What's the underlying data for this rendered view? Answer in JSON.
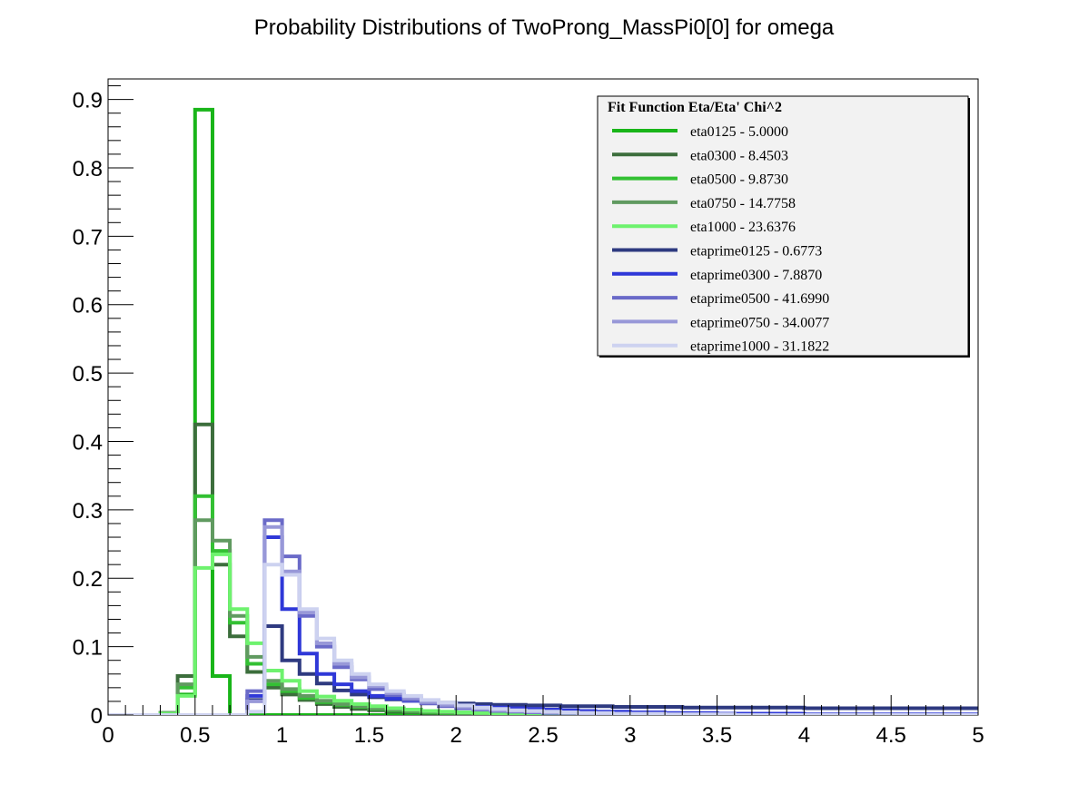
{
  "chart_data": {
    "type": "line",
    "title": "Probability Distributions of TwoProng_MassPi0[0] for omega",
    "xlim": [
      0,
      5
    ],
    "ylim": [
      0,
      0.93
    ],
    "x_ticks": [
      "0",
      "0.5",
      "1",
      "1.5",
      "2",
      "2.5",
      "3",
      "3.5",
      "4",
      "4.5",
      "5"
    ],
    "y_ticks": [
      "0",
      "0.1",
      "0.2",
      "0.3",
      "0.4",
      "0.5",
      "0.6",
      "0.7",
      "0.8",
      "0.9"
    ],
    "grid": false,
    "legend_position": "top-right",
    "legend_title": "Fit Function Eta/Eta' Chi^2",
    "bin_width": 0.1,
    "x_bin_edges_start": 0,
    "num_bins": 50,
    "series": [
      {
        "name": "eta0125",
        "chi2": "5.0000",
        "label": "eta0125 - 5.0000",
        "color": "#19b519",
        "values": [
          0,
          0,
          0,
          0.003,
          0.03,
          0.885,
          0.057,
          0,
          0,
          0,
          0,
          0,
          0,
          0,
          0,
          0,
          0,
          0,
          0,
          0,
          0,
          0,
          0,
          0,
          0,
          0,
          0,
          0,
          0,
          0,
          0,
          0,
          0,
          0,
          0,
          0,
          0,
          0,
          0,
          0,
          0,
          0,
          0,
          0,
          0,
          0,
          0,
          0,
          0,
          0
        ]
      },
      {
        "name": "eta0300",
        "chi2": "8.4503",
        "label": "eta0300 - 8.4503",
        "color": "#3c6e3c",
        "values": [
          0,
          0,
          0,
          0.003,
          0.057,
          0.425,
          0.22,
          0.115,
          0.063,
          0.04,
          0.03,
          0.022,
          0.016,
          0.012,
          0.009,
          0.007,
          0.005,
          0.004,
          0.003,
          0.002,
          0.002,
          0.0015,
          0.001,
          0.001,
          0.001,
          0,
          0,
          0,
          0,
          0,
          0,
          0,
          0,
          0,
          0,
          0,
          0,
          0,
          0,
          0,
          0,
          0,
          0,
          0,
          0,
          0,
          0,
          0,
          0,
          0
        ]
      },
      {
        "name": "eta0500",
        "chi2": "9.8730",
        "label": "eta0500 - 9.8730",
        "color": "#33c033",
        "values": [
          0,
          0,
          0,
          0.002,
          0.04,
          0.32,
          0.24,
          0.135,
          0.075,
          0.045,
          0.035,
          0.025,
          0.019,
          0.015,
          0.012,
          0.009,
          0.007,
          0.005,
          0.004,
          0.003,
          0.002,
          0.002,
          0.001,
          0.001,
          0.001,
          0,
          0,
          0,
          0,
          0,
          0,
          0,
          0,
          0,
          0,
          0,
          0,
          0,
          0,
          0,
          0,
          0,
          0,
          0,
          0,
          0,
          0,
          0,
          0,
          0
        ]
      },
      {
        "name": "eta0750",
        "chi2": "14.7758",
        "label": "eta0750 - 14.7758",
        "color": "#609a60",
        "values": [
          0,
          0,
          0,
          0.003,
          0.045,
          0.285,
          0.255,
          0.145,
          0.085,
          0.05,
          0.038,
          0.028,
          0.021,
          0.016,
          0.013,
          0.01,
          0.008,
          0.006,
          0.005,
          0.004,
          0.003,
          0.002,
          0.002,
          0.001,
          0.001,
          0,
          0,
          0,
          0,
          0,
          0,
          0,
          0,
          0,
          0,
          0,
          0,
          0,
          0,
          0,
          0,
          0,
          0,
          0,
          0,
          0,
          0,
          0,
          0,
          0
        ]
      },
      {
        "name": "eta1000",
        "chi2": "23.6376",
        "label": "eta1000 - 23.6376",
        "color": "#6ef26e",
        "values": [
          0,
          0,
          0,
          0.002,
          0.028,
          0.215,
          0.235,
          0.155,
          0.105,
          0.065,
          0.05,
          0.035,
          0.027,
          0.021,
          0.016,
          0.013,
          0.01,
          0.008,
          0.006,
          0.005,
          0.004,
          0.003,
          0.002,
          0.002,
          0.001,
          0.001,
          0,
          0,
          0,
          0,
          0,
          0,
          0,
          0,
          0,
          0,
          0,
          0,
          0,
          0,
          0,
          0,
          0,
          0,
          0,
          0,
          0,
          0,
          0,
          0
        ]
      },
      {
        "name": "etaprime0125",
        "chi2": "0.6773",
        "label": "etaprime0125 - 0.6773",
        "color": "#2e3a80",
        "values": [
          0,
          0,
          0,
          0,
          0,
          0,
          0,
          0,
          0.022,
          0.13,
          0.08,
          0.06,
          0.046,
          0.036,
          0.03,
          0.026,
          0.023,
          0.021,
          0.019,
          0.018,
          0.017,
          0.016,
          0.015,
          0.015,
          0.014,
          0.014,
          0.013,
          0.013,
          0.013,
          0.012,
          0.012,
          0.012,
          0.012,
          0.011,
          0.011,
          0.011,
          0.011,
          0.011,
          0.011,
          0.011,
          0.01,
          0.01,
          0.01,
          0.01,
          0.01,
          0.01,
          0.01,
          0.01,
          0.01,
          0.01
        ]
      },
      {
        "name": "etaprime0300",
        "chi2": "7.8870",
        "label": "etaprime0300 - 7.8870",
        "color": "#2f38d8",
        "values": [
          0,
          0,
          0,
          0,
          0,
          0,
          0,
          0,
          0.028,
          0.26,
          0.155,
          0.09,
          0.06,
          0.045,
          0.035,
          0.028,
          0.024,
          0.021,
          0.018,
          0.016,
          0.014,
          0.012,
          0.011,
          0.01,
          0.009,
          0.008,
          0.007,
          0.006,
          0.005,
          0.005,
          0.004,
          0.004,
          0.003,
          0.003,
          0.003,
          0.002,
          0.002,
          0.002,
          0.002,
          0.002,
          0.001,
          0.001,
          0.001,
          0.001,
          0.001,
          0.001,
          0.001,
          0.001,
          0.001,
          0.001
        ]
      },
      {
        "name": "etaprime0500",
        "chi2": "41.6990",
        "label": "etaprime0500 - 41.6990",
        "color": "#6a6ac8",
        "values": [
          0,
          0,
          0,
          0,
          0,
          0,
          0,
          0,
          0.035,
          0.285,
          0.232,
          0.145,
          0.1,
          0.07,
          0.052,
          0.038,
          0.029,
          0.022,
          0.017,
          0.013,
          0.01,
          0.008,
          0.006,
          0.005,
          0.004,
          0.003,
          0.003,
          0.002,
          0.002,
          0.002,
          0.001,
          0.001,
          0.001,
          0.001,
          0.001,
          0.001,
          0,
          0,
          0,
          0,
          0,
          0,
          0,
          0,
          0,
          0,
          0,
          0,
          0,
          0
        ]
      },
      {
        "name": "etaprime0750",
        "chi2": "34.0077",
        "label": "etaprime0750 - 34.0077",
        "color": "#9898d8",
        "values": [
          0,
          0,
          0,
          0,
          0,
          0,
          0,
          0,
          0.02,
          0.275,
          0.21,
          0.15,
          0.105,
          0.075,
          0.055,
          0.042,
          0.032,
          0.025,
          0.019,
          0.015,
          0.012,
          0.009,
          0.007,
          0.006,
          0.005,
          0.004,
          0.003,
          0.003,
          0.002,
          0.002,
          0.002,
          0.001,
          0.001,
          0.001,
          0.001,
          0.001,
          0,
          0,
          0,
          0,
          0,
          0,
          0,
          0,
          0,
          0,
          0,
          0,
          0,
          0
        ]
      },
      {
        "name": "etaprime1000",
        "chi2": "31.1822",
        "label": "etaprime1000 - 31.1822",
        "color": "#cdd2f0",
        "values": [
          0,
          0,
          0,
          0,
          0,
          0,
          0,
          0,
          0.005,
          0.22,
          0.205,
          0.155,
          0.112,
          0.08,
          0.06,
          0.045,
          0.035,
          0.028,
          0.022,
          0.018,
          0.014,
          0.011,
          0.009,
          0.007,
          0.006,
          0.005,
          0.004,
          0.003,
          0.003,
          0.002,
          0.002,
          0.002,
          0.001,
          0.001,
          0.001,
          0.001,
          0,
          0,
          0,
          0,
          0,
          0,
          0,
          0,
          0,
          0,
          0,
          0,
          0,
          0
        ]
      }
    ]
  }
}
